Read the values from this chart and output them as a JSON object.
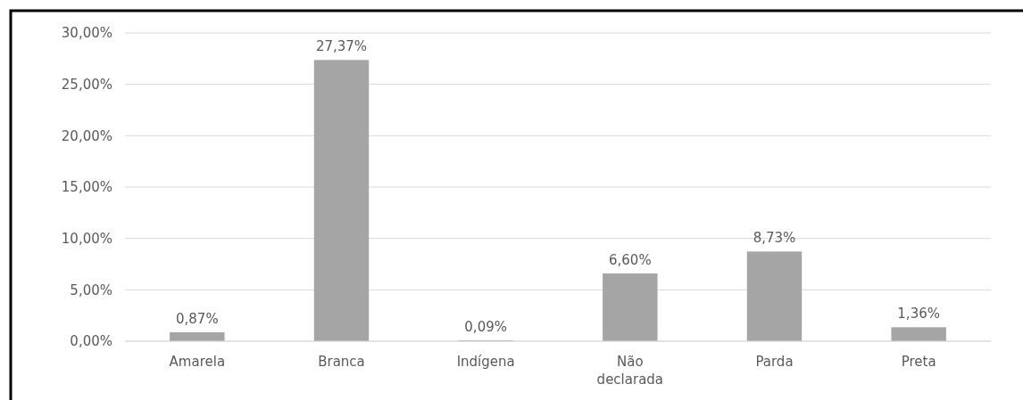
{
  "chart_data": {
    "type": "bar",
    "categories": [
      "Amarela",
      "Branca",
      "Indígena",
      "Não declarada",
      "Parda",
      "Preta"
    ],
    "values": [
      0.87,
      27.37,
      0.09,
      6.6,
      8.73,
      1.36
    ],
    "value_labels": [
      "0,87%",
      "27,37%",
      "0,09%",
      "6,60%",
      "8,73%",
      "1,36%"
    ],
    "color": "#a5a5a5",
    "ylim": [
      0,
      30
    ],
    "yticks": [
      {
        "value": 0,
        "label": "0,00%"
      },
      {
        "value": 5,
        "label": "5,00%"
      },
      {
        "value": 10,
        "label": "10,00%"
      },
      {
        "value": 15,
        "label": "15,00%"
      },
      {
        "value": 20,
        "label": "20,00%"
      },
      {
        "value": 25,
        "label": "25,00%"
      },
      {
        "value": 30,
        "label": "30,00%"
      }
    ],
    "grid": true
  }
}
